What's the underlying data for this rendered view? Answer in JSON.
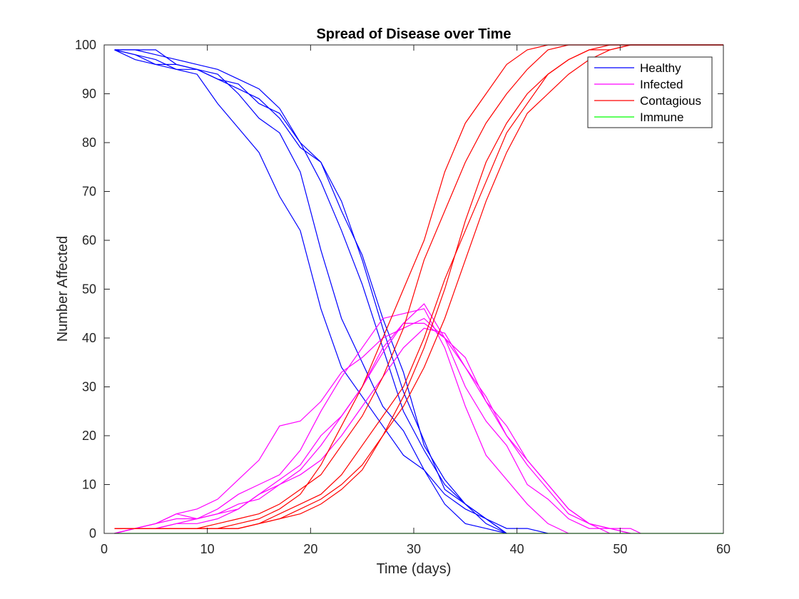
{
  "chart_data": {
    "type": "line",
    "title": "Spread of Disease over Time",
    "xlabel": "Time (days)",
    "ylabel": "Number Affected",
    "xlim": [
      0,
      60
    ],
    "ylim": [
      0,
      100
    ],
    "xticks": [
      0,
      10,
      20,
      30,
      40,
      50,
      60
    ],
    "yticks": [
      0,
      10,
      20,
      30,
      40,
      50,
      60,
      70,
      80,
      90,
      100
    ],
    "grid": false,
    "legend": {
      "placement": "top-right",
      "entries": [
        {
          "label": "Healthy",
          "color": "#0000ff"
        },
        {
          "label": "Infected",
          "color": "#ff00ff"
        },
        {
          "label": "Contagious",
          "color": "#ff0000"
        },
        {
          "label": "Immune",
          "color": "#00ff00"
        }
      ]
    },
    "series": [
      {
        "group": "Healthy",
        "color": "#0000ff",
        "x": [
          1,
          3,
          5,
          7,
          9,
          11,
          13,
          15,
          17,
          19,
          21,
          23,
          25,
          27,
          29,
          31,
          33,
          35,
          37,
          39
        ],
        "y": [
          99,
          98,
          97,
          95,
          94,
          88,
          83,
          78,
          69,
          62,
          46,
          34,
          28,
          22,
          16,
          13,
          6,
          2,
          1,
          0
        ]
      },
      {
        "group": "Healthy",
        "color": "#0000ff",
        "x": [
          1,
          3,
          5,
          7,
          9,
          11,
          13,
          15,
          17,
          19,
          21,
          23,
          25,
          27,
          29,
          31,
          33,
          35,
          37,
          39,
          41,
          43
        ],
        "y": [
          99,
          99,
          98,
          97,
          96,
          95,
          93,
          91,
          87,
          80,
          76,
          66,
          57,
          44,
          33,
          18,
          11,
          6,
          3,
          1,
          1,
          0
        ]
      },
      {
        "group": "Healthy",
        "color": "#0000ff",
        "x": [
          1,
          3,
          5,
          7,
          9,
          11,
          13,
          15,
          17,
          19,
          21,
          23,
          25,
          27,
          29,
          31,
          33,
          35,
          37,
          39
        ],
        "y": [
          99,
          97,
          96,
          95,
          95,
          94,
          90,
          85,
          82,
          74,
          58,
          44,
          35,
          26,
          21,
          13,
          8,
          5,
          3,
          0
        ]
      },
      {
        "group": "Healthy",
        "color": "#0000ff",
        "x": [
          1,
          3,
          5,
          7,
          9,
          11,
          13,
          15,
          17,
          19,
          21,
          23,
          25,
          27,
          29,
          31,
          33,
          35,
          37,
          39
        ],
        "y": [
          99,
          98,
          96,
          96,
          95,
          93,
          92,
          88,
          86,
          80,
          72,
          62,
          51,
          38,
          25,
          17,
          10,
          6,
          3,
          0
        ]
      },
      {
        "group": "Healthy",
        "color": "#0000ff",
        "x": [
          1,
          3,
          5,
          7,
          9,
          11,
          13,
          15,
          17,
          19,
          21,
          23,
          25,
          27,
          29,
          31,
          33,
          35,
          37,
          39
        ],
        "y": [
          99,
          99,
          99,
          96,
          95,
          93,
          91,
          89,
          85,
          79,
          76,
          68,
          56,
          42,
          29,
          19,
          9,
          6,
          2,
          0
        ]
      },
      {
        "group": "Infected",
        "color": "#ff00ff",
        "x": [
          1,
          3,
          5,
          7,
          9,
          11,
          13,
          15,
          17,
          19,
          21,
          23,
          25,
          27,
          29,
          31,
          33,
          35,
          37,
          39,
          41,
          43,
          45,
          47,
          49
        ],
        "y": [
          0,
          1,
          2,
          4,
          5,
          7,
          11,
          15,
          22,
          23,
          27,
          33,
          36,
          40,
          42,
          44,
          40,
          34,
          27,
          22,
          15,
          10,
          5,
          2,
          0
        ]
      },
      {
        "group": "Infected",
        "color": "#ff00ff",
        "x": [
          1,
          3,
          5,
          7,
          9,
          11,
          13,
          15,
          17,
          19,
          21,
          23,
          25,
          27,
          29,
          31,
          33,
          35,
          37,
          39,
          41,
          43,
          45,
          47,
          49,
          51
        ],
        "y": [
          0,
          1,
          2,
          3,
          3,
          4,
          5,
          8,
          11,
          14,
          20,
          24,
          30,
          38,
          43,
          43,
          40,
          30,
          23,
          18,
          10,
          7,
          3,
          1,
          1,
          0
        ]
      },
      {
        "group": "Infected",
        "color": "#ff00ff",
        "x": [
          1,
          3,
          5,
          7,
          9,
          11,
          13,
          15,
          17,
          19,
          21,
          23,
          25,
          27,
          29,
          31,
          33,
          35,
          37,
          39,
          41,
          43,
          45
        ],
        "y": [
          0,
          1,
          2,
          4,
          3,
          5,
          8,
          10,
          12,
          17,
          25,
          32,
          38,
          44,
          45,
          46,
          38,
          26,
          16,
          11,
          6,
          2,
          0
        ]
      },
      {
        "group": "Infected",
        "color": "#ff00ff",
        "x": [
          1,
          3,
          5,
          7,
          9,
          11,
          13,
          15,
          17,
          19,
          21,
          23,
          25,
          27,
          29,
          31,
          33,
          35,
          37,
          39,
          41,
          43,
          45,
          47,
          49,
          51
        ],
        "y": [
          0,
          1,
          1,
          2,
          3,
          4,
          6,
          7,
          10,
          13,
          18,
          24,
          30,
          37,
          43,
          47,
          40,
          36,
          27,
          20,
          14,
          9,
          4,
          2,
          1,
          0
        ]
      },
      {
        "group": "Infected",
        "color": "#ff00ff",
        "x": [
          1,
          3,
          5,
          7,
          9,
          11,
          13,
          15,
          17,
          19,
          21,
          23,
          25,
          27,
          29,
          31,
          33,
          35,
          37,
          39,
          41,
          43,
          45,
          47,
          49,
          51,
          52
        ],
        "y": [
          0,
          1,
          1,
          2,
          2,
          3,
          5,
          8,
          10,
          12,
          15,
          20,
          26,
          32,
          38,
          42,
          41,
          34,
          28,
          20,
          15,
          10,
          5,
          2,
          1,
          1,
          0
        ]
      },
      {
        "group": "Contagious",
        "color": "#ff0000",
        "x": [
          1,
          3,
          5,
          7,
          9,
          11,
          13,
          15,
          17,
          19,
          21,
          23,
          25,
          27,
          29,
          31,
          33,
          35,
          37,
          39,
          41,
          43,
          45,
          47,
          49,
          51,
          53,
          55,
          57,
          59,
          60
        ],
        "y": [
          1,
          1,
          1,
          1,
          1,
          1,
          2,
          3,
          5,
          8,
          14,
          22,
          30,
          40,
          50,
          60,
          74,
          84,
          90,
          96,
          99,
          100,
          100,
          100,
          100,
          100,
          100,
          100,
          100,
          100,
          100
        ]
      },
      {
        "group": "Contagious",
        "color": "#ff0000",
        "x": [
          1,
          3,
          5,
          7,
          9,
          11,
          13,
          15,
          17,
          19,
          21,
          23,
          25,
          27,
          29,
          31,
          33,
          35,
          37,
          39,
          41,
          43,
          45,
          47,
          49,
          51,
          53,
          55,
          57,
          59,
          60
        ],
        "y": [
          1,
          1,
          1,
          1,
          1,
          2,
          3,
          4,
          6,
          9,
          12,
          18,
          24,
          32,
          42,
          56,
          66,
          76,
          84,
          90,
          95,
          99,
          100,
          100,
          100,
          100,
          100,
          100,
          100,
          100,
          100
        ]
      },
      {
        "group": "Contagious",
        "color": "#ff0000",
        "x": [
          1,
          3,
          5,
          7,
          9,
          11,
          13,
          15,
          17,
          19,
          21,
          23,
          25,
          27,
          29,
          31,
          33,
          35,
          37,
          39,
          41,
          43,
          45,
          47,
          49,
          51,
          53,
          55,
          57,
          59,
          60
        ],
        "y": [
          1,
          1,
          1,
          1,
          1,
          1,
          1,
          2,
          4,
          6,
          8,
          12,
          18,
          24,
          30,
          40,
          52,
          62,
          72,
          82,
          88,
          94,
          97,
          99,
          100,
          100,
          100,
          100,
          100,
          100,
          100
        ]
      },
      {
        "group": "Contagious",
        "color": "#ff0000",
        "x": [
          1,
          3,
          5,
          7,
          9,
          11,
          13,
          15,
          17,
          19,
          21,
          23,
          25,
          27,
          29,
          31,
          33,
          35,
          37,
          39,
          41,
          43,
          45,
          47,
          49,
          51,
          53,
          55,
          57,
          59,
          60
        ],
        "y": [
          1,
          1,
          1,
          1,
          1,
          1,
          1,
          2,
          3,
          5,
          7,
          10,
          14,
          20,
          28,
          38,
          50,
          64,
          76,
          84,
          90,
          94,
          97,
          99,
          99,
          100,
          100,
          100,
          100,
          100,
          100
        ]
      },
      {
        "group": "Contagious",
        "color": "#ff0000",
        "x": [
          1,
          3,
          5,
          7,
          9,
          11,
          13,
          15,
          17,
          19,
          21,
          23,
          25,
          27,
          29,
          31,
          33,
          35,
          37,
          39,
          41,
          43,
          45,
          47,
          49,
          51,
          53,
          55,
          57,
          59,
          60
        ],
        "y": [
          1,
          1,
          1,
          1,
          1,
          1,
          1,
          2,
          3,
          4,
          6,
          9,
          13,
          20,
          26,
          34,
          44,
          56,
          68,
          78,
          86,
          90,
          94,
          97,
          99,
          100,
          100,
          100,
          100,
          100,
          100
        ]
      },
      {
        "group": "Immune",
        "color": "#00ff00",
        "x": [
          1,
          60
        ],
        "y": [
          0,
          0
        ]
      }
    ]
  }
}
